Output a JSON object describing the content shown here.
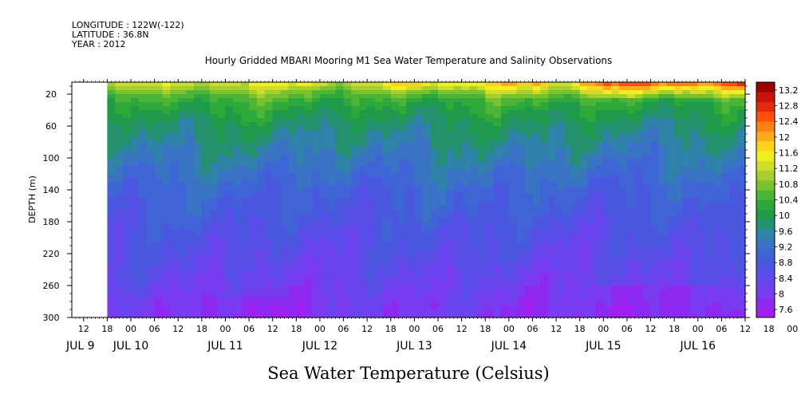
{
  "header": {
    "longitude": "LONGITUDE : 122W(-122)",
    "latitude": "LATITUDE : 36.8N",
    "year": "YEAR : 2012"
  },
  "chart_data": {
    "type": "heatmap",
    "title": "Hourly Gridded MBARI Mooring M1 Sea Water Temperature and Salinity Observations",
    "ylabel": "DEPTH (m)",
    "variable_label": "Sea Water Temperature (Celsius)",
    "y_ticks": [
      20,
      60,
      100,
      140,
      180,
      220,
      260,
      300
    ],
    "ylim": [
      300,
      5
    ],
    "x_hour_labels": [
      "12",
      "18",
      "00",
      "06",
      "12",
      "18",
      "00",
      "06",
      "12",
      "18",
      "00",
      "06",
      "12",
      "18",
      "00",
      "06",
      "12",
      "18",
      "00",
      "06",
      "12",
      "18",
      "00",
      "06",
      "12",
      "18",
      "00",
      "06",
      "12",
      "18",
      "00",
      "06"
    ],
    "x_date_labels": [
      "JUL  9",
      "JUL 10",
      "JUL 11",
      "JUL 12",
      "JUL 13",
      "JUL 14",
      "JUL 15",
      "JUL 16"
    ],
    "x_range_hours": [
      "2012-07-09 09:00",
      "2012-07-16 12:00"
    ],
    "data_start": "2012-07-09 18:00",
    "colorbar": {
      "levels": [
        7.6,
        8,
        8.4,
        8.8,
        9.2,
        9.6,
        10,
        10.4,
        10.8,
        11.2,
        11.6,
        12,
        12.4,
        12.8,
        13.2
      ],
      "labels": [
        "7.6",
        "8",
        "8.4",
        "8.8",
        "9.2",
        "9.6",
        "10",
        "10.4",
        "10.8",
        "11.2",
        "11.6",
        "12",
        "12.4",
        "12.8",
        "13.2"
      ],
      "colors": [
        "#a020f0",
        "#8c2af2",
        "#7a3cf0",
        "#6a45ee",
        "#5a4ee8",
        "#4a58e0",
        "#3f64d6",
        "#3a72c4",
        "#2f82a8",
        "#24906e",
        "#1e9a4a",
        "#2ea838",
        "#4cb436",
        "#78c232",
        "#a4cf2e",
        "#cfdc28",
        "#f0f020",
        "#ffd21e",
        "#ffaa1a",
        "#ff8014",
        "#ff5010",
        "#e62a0c",
        "#c8140a",
        "#a00000"
      ]
    },
    "temperature_profile": {
      "depth_m": [
        5,
        10,
        20,
        30,
        40,
        60,
        80,
        100,
        120,
        140,
        160,
        180,
        200,
        220,
        240,
        260,
        280,
        300
      ],
      "typical_celsius": [
        11.4,
        11.1,
        10.6,
        10.3,
        10.1,
        9.8,
        9.6,
        9.4,
        9.2,
        9.0,
        8.9,
        8.75,
        8.6,
        8.5,
        8.35,
        8.2,
        8.05,
        7.95
      ]
    },
    "notes": "Near-surface warming above 12.8 C appears on JUL 14-16; cooler water below 8 C near 280-300 m on JUL 15-16."
  }
}
